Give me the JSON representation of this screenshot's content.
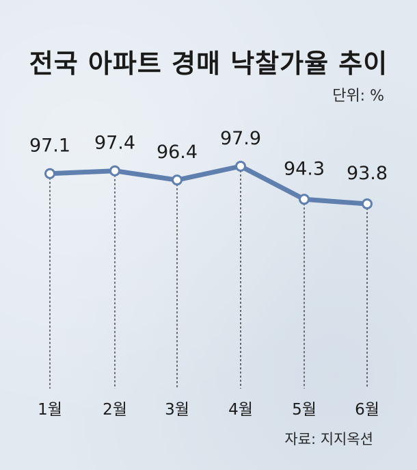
{
  "chart_data": {
    "type": "line",
    "title": "전국 아파트 경매 낙찰가율 추이",
    "unit_label": "단위: %",
    "source": "자료: 지지옥션",
    "categories": [
      "1월",
      "2월",
      "3월",
      "4월",
      "5월",
      "6월"
    ],
    "value_labels": [
      "97.1",
      "97.4",
      "96.4",
      "97.9",
      "94.3",
      "93.8"
    ],
    "series": [
      {
        "values": [
          97.1,
          97.4,
          96.4,
          97.9,
          94.3,
          93.8
        ]
      }
    ],
    "ylim": [
      93.8,
      97.9
    ],
    "grid": false,
    "legend": "none",
    "colors": {
      "line": "#5f7faf",
      "marker_fill": "#ffffff",
      "drop_line": "#2b2b2b"
    }
  }
}
